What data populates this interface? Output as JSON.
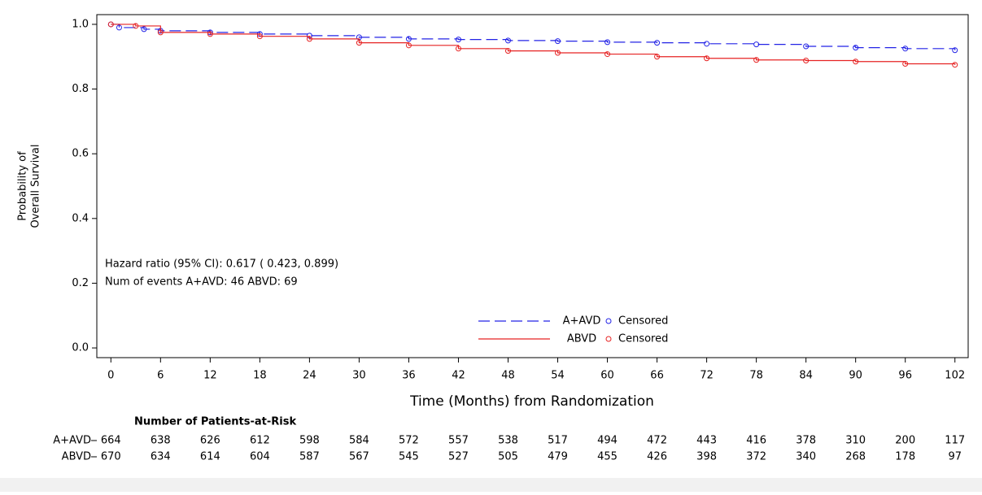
{
  "chart_data": {
    "type": "km",
    "x_label": "Time (Months) from Randomization",
    "y_label": [
      "Probability of",
      "Overall Survival"
    ],
    "xlim": [
      -1.7,
      103.6
    ],
    "ylim": [
      -0.03,
      1.03
    ],
    "xticks": [
      0,
      6,
      12,
      18,
      24,
      30,
      36,
      42,
      48,
      54,
      60,
      66,
      72,
      78,
      84,
      90,
      96,
      102
    ],
    "yticks": [
      {
        "value": 0,
        "label": "0.0"
      },
      0.2,
      0.4,
      0.6,
      0.8,
      {
        "value": 1,
        "label": "1.0"
      }
    ],
    "censored_label": "Censored",
    "annotations": [
      "Hazard ratio (95% CI):  0.617 ( 0.423,  0.899)",
      "Num of events  A+AVD: 46  ABVD: 69"
    ],
    "series": [
      {
        "name": "A+AVD",
        "color": "#2323e6",
        "dash": true,
        "x": [
          0,
          1,
          4,
          6,
          12,
          18,
          24,
          30,
          36,
          42,
          48,
          54,
          60,
          66,
          72,
          78,
          84,
          90,
          96,
          102
        ],
        "values": [
          1.0,
          0.99,
          0.985,
          0.98,
          0.975,
          0.97,
          0.965,
          0.96,
          0.955,
          0.953,
          0.95,
          0.948,
          0.945,
          0.943,
          0.94,
          0.938,
          0.932,
          0.928,
          0.925,
          0.92
        ]
      },
      {
        "name": "ABVD",
        "color": "#e62323",
        "dash": false,
        "x": [
          0,
          3,
          6,
          12,
          18,
          24,
          30,
          36,
          42,
          48,
          54,
          60,
          66,
          72,
          78,
          84,
          90,
          96,
          102
        ],
        "values": [
          1.0,
          0.995,
          0.975,
          0.97,
          0.963,
          0.955,
          0.943,
          0.935,
          0.925,
          0.918,
          0.912,
          0.908,
          0.9,
          0.895,
          0.89,
          0.888,
          0.885,
          0.878,
          0.875
        ]
      }
    ],
    "at_risk": {
      "title": "Number of Patients-at-Risk",
      "rows": [
        [
          664,
          638,
          626,
          612,
          598,
          584,
          572,
          557,
          538,
          517,
          494,
          472,
          443,
          416,
          378,
          310,
          200,
          117
        ],
        [
          670,
          634,
          614,
          604,
          587,
          567,
          545,
          527,
          505,
          479,
          455,
          426,
          398,
          372,
          340,
          268,
          178,
          97
        ]
      ]
    }
  }
}
